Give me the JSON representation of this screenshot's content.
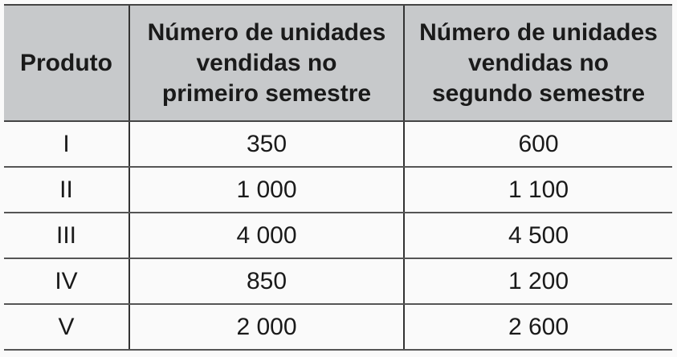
{
  "table": {
    "headers": [
      [
        "Produto"
      ],
      [
        "Número de unidades",
        "vendidas no",
        "primeiro semestre"
      ],
      [
        "Número de unidades",
        "vendidas no",
        "segundo semestre"
      ]
    ],
    "rows": [
      [
        "I",
        "350",
        "600"
      ],
      [
        "II",
        "1 000",
        "1 100"
      ],
      [
        "III",
        "4 000",
        "4 500"
      ],
      [
        "IV",
        "850",
        "1 200"
      ],
      [
        "V",
        "2 000",
        "2 600"
      ]
    ],
    "colors": {
      "header_bg": "#c7c9cb",
      "body_bg": "#fafafa"
    }
  }
}
